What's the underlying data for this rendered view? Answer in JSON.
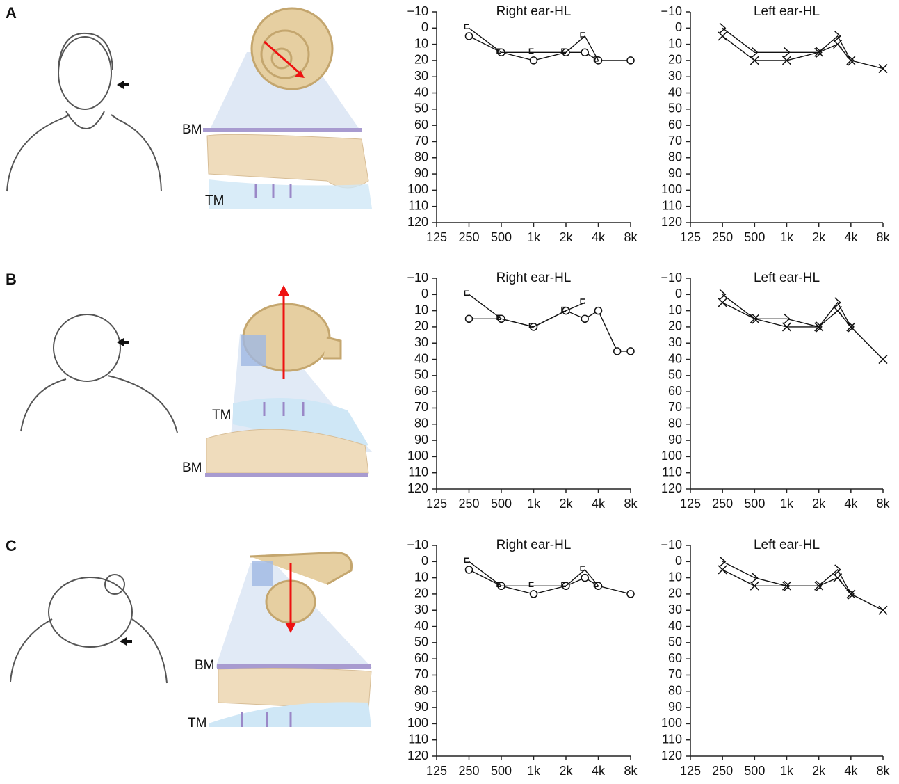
{
  "panels": [
    {
      "letter": "A",
      "bm": "BM",
      "tm": "TM"
    },
    {
      "letter": "B",
      "bm": "BM",
      "tm": "TM"
    },
    {
      "letter": "C",
      "bm": "BM",
      "tm": "TM"
    }
  ],
  "chart_data": [
    {
      "type": "line",
      "title": "Right ear-HL",
      "xscale": "log",
      "xlim": [
        125,
        8000
      ],
      "ylim": [
        -10,
        120
      ],
      "y_inverted": true,
      "xticks": [
        125,
        250,
        500,
        {
          "value": 1000,
          "label": "1k"
        },
        {
          "value": 2000,
          "label": "2k"
        },
        {
          "value": 4000,
          "label": "4k"
        },
        {
          "value": 8000,
          "label": "8k"
        }
      ],
      "yticks": [
        {
          "value": -10,
          "label": "−10"
        },
        0,
        10,
        20,
        30,
        40,
        50,
        60,
        70,
        80,
        90,
        100,
        110,
        120
      ],
      "series": [
        {
          "color": "#111",
          "marker": "circle",
          "x": [
            250,
            500,
            1000,
            2000,
            3000,
            4000,
            8000
          ],
          "values": [
            5,
            15,
            20,
            15,
            15,
            20,
            20
          ]
        },
        {
          "color": "#111",
          "marker": "bracket-left",
          "x": [
            250,
            500,
            1000,
            2000,
            3000,
            4000
          ],
          "values": [
            0,
            15,
            15,
            15,
            5,
            20
          ]
        }
      ]
    },
    {
      "type": "line",
      "title": "Left ear-HL",
      "xscale": "log",
      "xlim": [
        125,
        8000
      ],
      "ylim": [
        -10,
        120
      ],
      "y_inverted": true,
      "xticks": [
        125,
        250,
        500,
        {
          "value": 1000,
          "label": "1k"
        },
        {
          "value": 2000,
          "label": "2k"
        },
        {
          "value": 4000,
          "label": "4k"
        },
        {
          "value": 8000,
          "label": "8k"
        }
      ],
      "yticks": [
        {
          "value": -10,
          "label": "−10"
        },
        0,
        10,
        20,
        30,
        40,
        50,
        60,
        70,
        80,
        90,
        100,
        110,
        120
      ],
      "series": [
        {
          "color": "#111",
          "marker": "cross",
          "x": [
            250,
            500,
            1000,
            2000,
            3000,
            4000,
            8000
          ],
          "values": [
            5,
            20,
            20,
            15,
            10,
            20,
            25
          ]
        },
        {
          "color": "#111",
          "marker": "greater-than",
          "x": [
            250,
            500,
            1000,
            2000,
            3000,
            4000
          ],
          "values": [
            0,
            15,
            15,
            15,
            5,
            20
          ]
        }
      ]
    },
    {
      "type": "line",
      "title": "Right ear-HL",
      "xscale": "log",
      "xlim": [
        125,
        8000
      ],
      "ylim": [
        -10,
        120
      ],
      "y_inverted": true,
      "xticks": [
        125,
        250,
        500,
        {
          "value": 1000,
          "label": "1k"
        },
        {
          "value": 2000,
          "label": "2k"
        },
        {
          "value": 4000,
          "label": "4k"
        },
        {
          "value": 8000,
          "label": "8k"
        }
      ],
      "yticks": [
        {
          "value": -10,
          "label": "−10"
        },
        0,
        10,
        20,
        30,
        40,
        50,
        60,
        70,
        80,
        90,
        100,
        110,
        120
      ],
      "series": [
        {
          "color": "#111",
          "marker": "circle",
          "x": [
            250,
            500,
            1000,
            2000,
            3000,
            4000,
            6000,
            8000
          ],
          "values": [
            15,
            15,
            20,
            10,
            15,
            10,
            35,
            35
          ]
        },
        {
          "color": "#111",
          "marker": "bracket-left",
          "x": [
            250,
            500,
            1000,
            2000,
            3000
          ],
          "values": [
            0,
            15,
            20,
            10,
            5
          ]
        }
      ]
    },
    {
      "type": "line",
      "title": "Left ear-HL",
      "xscale": "log",
      "xlim": [
        125,
        8000
      ],
      "ylim": [
        -10,
        120
      ],
      "y_inverted": true,
      "xticks": [
        125,
        250,
        500,
        {
          "value": 1000,
          "label": "1k"
        },
        {
          "value": 2000,
          "label": "2k"
        },
        {
          "value": 4000,
          "label": "4k"
        },
        {
          "value": 8000,
          "label": "8k"
        }
      ],
      "yticks": [
        {
          "value": -10,
          "label": "−10"
        },
        0,
        10,
        20,
        30,
        40,
        50,
        60,
        70,
        80,
        90,
        100,
        110,
        120
      ],
      "series": [
        {
          "color": "#111",
          "marker": "cross",
          "x": [
            250,
            500,
            1000,
            2000,
            3000,
            4000,
            8000
          ],
          "values": [
            5,
            15,
            20,
            20,
            10,
            20,
            40
          ]
        },
        {
          "color": "#111",
          "marker": "greater-than",
          "x": [
            250,
            500,
            1000,
            2000,
            3000,
            4000
          ],
          "values": [
            0,
            15,
            15,
            20,
            5,
            20
          ]
        }
      ]
    },
    {
      "type": "line",
      "title": "Right ear-HL",
      "xscale": "log",
      "xlim": [
        125,
        8000
      ],
      "ylim": [
        -10,
        120
      ],
      "y_inverted": true,
      "xticks": [
        125,
        250,
        500,
        {
          "value": 1000,
          "label": "1k"
        },
        {
          "value": 2000,
          "label": "2k"
        },
        {
          "value": 4000,
          "label": "4k"
        },
        {
          "value": 8000,
          "label": "8k"
        }
      ],
      "yticks": [
        {
          "value": -10,
          "label": "−10"
        },
        0,
        10,
        20,
        30,
        40,
        50,
        60,
        70,
        80,
        90,
        100,
        110,
        120
      ],
      "series": [
        {
          "color": "#111",
          "marker": "circle",
          "x": [
            250,
            500,
            1000,
            2000,
            3000,
            4000,
            8000
          ],
          "values": [
            5,
            15,
            20,
            15,
            10,
            15,
            20
          ]
        },
        {
          "color": "#111",
          "marker": "bracket-left",
          "x": [
            250,
            500,
            1000,
            2000,
            3000,
            4000
          ],
          "values": [
            0,
            15,
            15,
            15,
            5,
            15
          ]
        }
      ]
    },
    {
      "type": "line",
      "title": "Left ear-HL",
      "xscale": "log",
      "xlim": [
        125,
        8000
      ],
      "ylim": [
        -10,
        120
      ],
      "y_inverted": true,
      "xticks": [
        125,
        250,
        500,
        {
          "value": 1000,
          "label": "1k"
        },
        {
          "value": 2000,
          "label": "2k"
        },
        {
          "value": 4000,
          "label": "4k"
        },
        {
          "value": 8000,
          "label": "8k"
        }
      ],
      "yticks": [
        {
          "value": -10,
          "label": "−10"
        },
        0,
        10,
        20,
        30,
        40,
        50,
        60,
        70,
        80,
        90,
        100,
        110,
        120
      ],
      "series": [
        {
          "color": "#111",
          "marker": "cross",
          "x": [
            250,
            500,
            1000,
            2000,
            3000,
            4000,
            8000
          ],
          "values": [
            5,
            15,
            15,
            15,
            10,
            20,
            30
          ]
        },
        {
          "color": "#111",
          "marker": "greater-than",
          "x": [
            250,
            500,
            1000,
            2000,
            3000,
            4000
          ],
          "values": [
            0,
            10,
            15,
            15,
            5,
            20
          ]
        }
      ]
    }
  ]
}
